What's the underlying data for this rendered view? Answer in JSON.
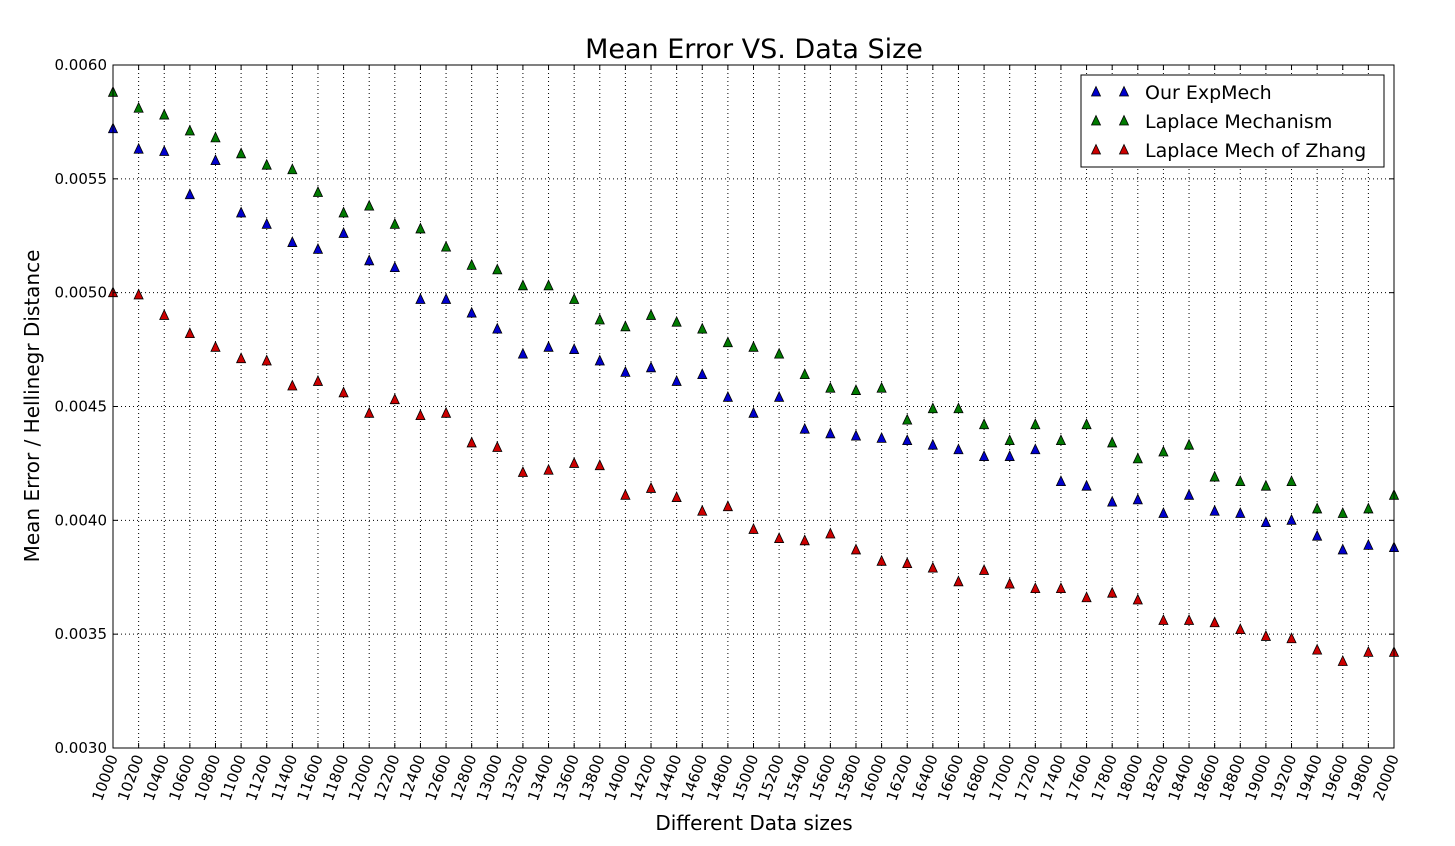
{
  "chart_data": {
    "type": "scatter",
    "title": "Mean Error VS. Data Size",
    "xlabel": "Different Data sizes",
    "ylabel": "Mean Error / Hellinegr Distance",
    "xlim": [
      10000,
      20000
    ],
    "ylim": [
      0.003,
      0.006
    ],
    "grid": true,
    "legend_position": "top-right",
    "marker": "triangle-up",
    "x": [
      10000,
      10200,
      10400,
      10600,
      10800,
      11000,
      11200,
      11400,
      11600,
      11800,
      12000,
      12200,
      12400,
      12600,
      12800,
      13000,
      13200,
      13400,
      13600,
      13800,
      14000,
      14200,
      14400,
      14600,
      14800,
      15000,
      15200,
      15400,
      15600,
      15800,
      16000,
      16200,
      16400,
      16600,
      16800,
      17000,
      17200,
      17400,
      17600,
      17800,
      18000,
      18200,
      18400,
      18600,
      18800,
      19000,
      19200,
      19400,
      19600,
      19800,
      20000
    ],
    "x_tick_labels": [
      "10000",
      "10200",
      "10400",
      "10600",
      "10800",
      "11000",
      "11200",
      "11400",
      "11600",
      "11800",
      "12000",
      "12200",
      "12400",
      "12600",
      "12800",
      "13000",
      "13200",
      "13400",
      "13600",
      "13800",
      "14000",
      "14200",
      "14400",
      "14600",
      "14800",
      "15000",
      "15200",
      "15400",
      "15600",
      "15800",
      "16000",
      "16200",
      "16400",
      "16600",
      "16800",
      "17000",
      "17200",
      "17400",
      "17600",
      "17800",
      "18000",
      "18200",
      "18400",
      "18600",
      "18800",
      "19000",
      "19200",
      "19400",
      "19600",
      "19800",
      "20000"
    ],
    "y_ticks": [
      0.003,
      0.0035,
      0.004,
      0.0045,
      0.005,
      0.0055,
      0.006
    ],
    "y_tick_labels": [
      "0.0030",
      "0.0035",
      "0.0040",
      "0.0045",
      "0.0050",
      "0.0055",
      "0.0060"
    ],
    "series": [
      {
        "name": "Our ExpMech",
        "color": "#0000cc",
        "values": [
          0.00572,
          0.00563,
          0.00562,
          0.00543,
          0.00558,
          0.00535,
          0.0053,
          0.00522,
          0.00519,
          0.00526,
          0.00514,
          0.00511,
          0.00497,
          0.00497,
          0.00491,
          0.00484,
          0.00473,
          0.00476,
          0.00475,
          0.0047,
          0.00465,
          0.00467,
          0.00461,
          0.00464,
          0.00454,
          0.00447,
          0.00454,
          0.0044,
          0.00438,
          0.00437,
          0.00436,
          0.00435,
          0.00433,
          0.00431,
          0.00428,
          0.00428,
          0.00431,
          0.00417,
          0.00415,
          0.00408,
          0.00409,
          0.00403,
          0.00411,
          0.00404,
          0.00403,
          0.00399,
          0.004,
          0.00393,
          0.00387,
          0.00389,
          0.00388
        ]
      },
      {
        "name": "Laplace Mechanism",
        "color": "#007a00",
        "values": [
          0.00588,
          0.00581,
          0.00578,
          0.00571,
          0.00568,
          0.00561,
          0.00556,
          0.00554,
          0.00544,
          0.00535,
          0.00538,
          0.0053,
          0.00528,
          0.0052,
          0.00512,
          0.0051,
          0.00503,
          0.00503,
          0.00497,
          0.00488,
          0.00485,
          0.0049,
          0.00487,
          0.00484,
          0.00478,
          0.00476,
          0.00473,
          0.00464,
          0.00458,
          0.00457,
          0.00458,
          0.00444,
          0.00449,
          0.00449,
          0.00442,
          0.00435,
          0.00442,
          0.00435,
          0.00442,
          0.00434,
          0.00427,
          0.0043,
          0.00433,
          0.00419,
          0.00417,
          0.00415,
          0.00417,
          0.00405,
          0.00403,
          0.00405,
          0.00411
        ]
      },
      {
        "name": "Laplace Mech of Zhang",
        "color": "#cc0000",
        "values": [
          0.005,
          0.00499,
          0.0049,
          0.00482,
          0.00476,
          0.00471,
          0.0047,
          0.00459,
          0.00461,
          0.00456,
          0.00447,
          0.00453,
          0.00446,
          0.00447,
          0.00434,
          0.00432,
          0.00421,
          0.00422,
          0.00425,
          0.00424,
          0.00411,
          0.00414,
          0.0041,
          0.00404,
          0.00406,
          0.00396,
          0.00392,
          0.00391,
          0.00394,
          0.00387,
          0.00382,
          0.00381,
          0.00379,
          0.00373,
          0.00378,
          0.00372,
          0.0037,
          0.0037,
          0.00366,
          0.00368,
          0.00365,
          0.00356,
          0.00356,
          0.00355,
          0.00352,
          0.00349,
          0.00348,
          0.00343,
          0.00338,
          0.00342,
          0.00342
        ]
      }
    ]
  }
}
